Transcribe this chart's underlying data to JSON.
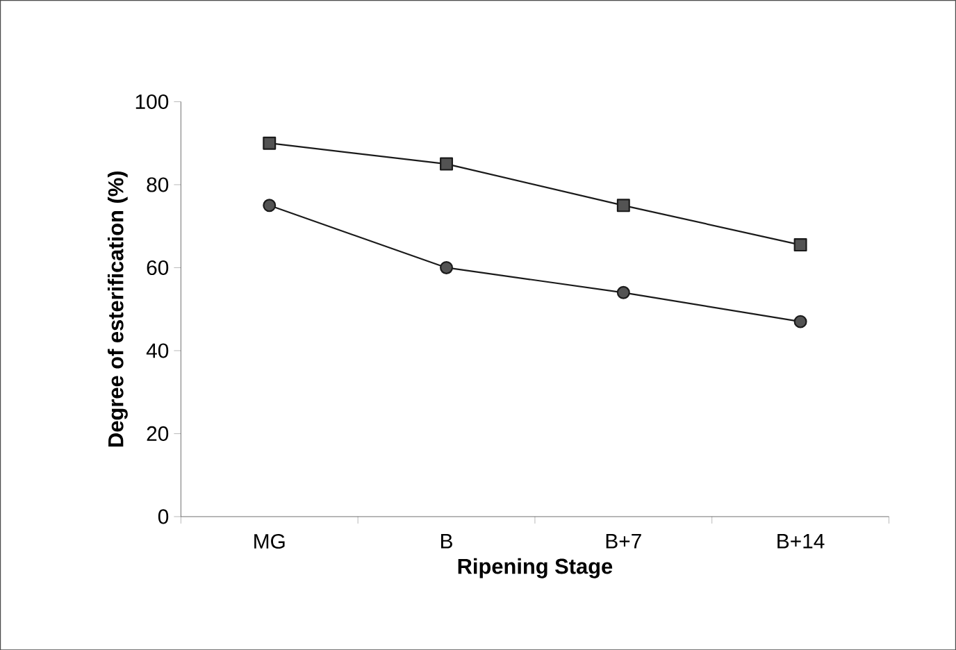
{
  "chart_data": {
    "type": "line",
    "xlabel": "Ripening Stage",
    "ylabel": "Degree of esterification (%)",
    "categories": [
      "MG",
      "B",
      "B+7",
      "B+14"
    ],
    "series": [
      {
        "color": "#1a1a1a",
        "marker": "square",
        "values": [
          90,
          85,
          75,
          65.5
        ]
      },
      {
        "color": "#1a1a1a",
        "marker": "circle",
        "values": [
          75,
          60,
          54,
          47
        ]
      }
    ],
    "ylim": [
      0,
      100
    ],
    "yticks": [
      0,
      20,
      40,
      60,
      80,
      100
    ],
    "grid": false,
    "line_style": "solid"
  }
}
